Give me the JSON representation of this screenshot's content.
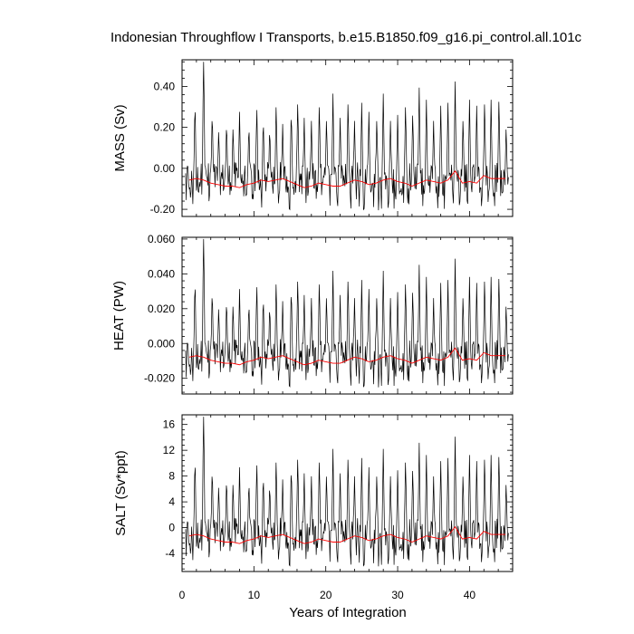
{
  "title": "Indonesian Throughflow I Transports, b.e15.B1850.f09_g16.pi_control.all.101c",
  "xlabel": "Years of Integration",
  "colors": {
    "monthly": "#000000",
    "annual": "#ff0000",
    "frame": "#000000"
  },
  "chart_data": [
    {
      "type": "line",
      "ylabel": "MASS (Sv)",
      "xlim": [
        0,
        46
      ],
      "ylim": [
        -0.235,
        0.53
      ],
      "xticks": [
        "0",
        "10",
        "20",
        "30",
        "40"
      ],
      "yticks": [
        "-0.20",
        "0.00",
        "0.20",
        "0.40"
      ],
      "ytick_values": [
        -0.2,
        0.0,
        0.2,
        0.4
      ],
      "series": [
        {
          "values_from": "monthly_norm",
          "scale": [
            -0.22,
            0.52
          ]
        },
        {
          "values_from": "annual_norm",
          "scale": [
            -0.22,
            0.52
          ]
        }
      ],
      "grid": false
    },
    {
      "type": "line",
      "ylabel": "HEAT (PW)",
      "xlim": [
        0,
        46
      ],
      "ylim": [
        -0.029,
        0.061
      ],
      "xticks": [
        "0",
        "10",
        "20",
        "30",
        "40"
      ],
      "yticks": [
        "-0.020",
        "0.000",
        "0.020",
        "0.040",
        "0.060"
      ],
      "ytick_values": [
        -0.02,
        0.0,
        0.02,
        0.04,
        0.06
      ],
      "series": [
        {
          "values_from": "monthly_norm",
          "scale": [
            -0.027,
            0.06
          ]
        },
        {
          "values_from": "annual_norm",
          "scale": [
            -0.027,
            0.06
          ]
        }
      ],
      "grid": false
    },
    {
      "type": "line",
      "ylabel": "SALT (Sv*ppt)",
      "xlim": [
        0,
        46
      ],
      "ylim": [
        -6.8,
        17.5
      ],
      "xticks": [
        "0",
        "10",
        "20",
        "30",
        "40"
      ],
      "yticks": [
        "-4",
        "0",
        "4",
        "8",
        "12",
        "16"
      ],
      "ytick_values": [
        -4,
        0,
        4,
        8,
        12,
        16
      ],
      "series": [
        {
          "values_from": "monthly_norm",
          "scale": [
            -6.5,
            17.2
          ]
        },
        {
          "values_from": "annual_norm",
          "scale": [
            -6.5,
            17.2
          ]
        }
      ],
      "grid": false
    }
  ],
  "shared_series": {
    "x_start": 0.5,
    "x_step_monthly": 0.0833333,
    "annual_x": [
      1,
      2,
      3,
      4,
      5,
      6,
      7,
      8,
      9,
      10,
      11,
      12,
      13,
      14,
      15,
      16,
      17,
      18,
      19,
      20,
      21,
      22,
      23,
      24,
      25,
      26,
      27,
      28,
      29,
      30,
      31,
      32,
      33,
      34,
      35,
      36,
      37,
      38,
      39,
      40,
      41,
      42,
      43,
      44,
      45
    ],
    "annual_norm": [
      0.22,
      0.23,
      0.22,
      0.2,
      0.19,
      0.18,
      0.18,
      0.17,
      0.19,
      0.2,
      0.22,
      0.21,
      0.22,
      0.23,
      0.21,
      0.19,
      0.17,
      0.18,
      0.2,
      0.19,
      0.18,
      0.18,
      0.2,
      0.22,
      0.21,
      0.19,
      0.2,
      0.22,
      0.23,
      0.21,
      0.2,
      0.18,
      0.2,
      0.22,
      0.21,
      0.2,
      0.22,
      0.28,
      0.2,
      0.21,
      0.2,
      0.25,
      0.23,
      0.23,
      0.23
    ],
    "spikes": [
      [
        1.8,
        0.62
      ],
      [
        3.0,
        1.0
      ],
      [
        4.2,
        0.55
      ],
      [
        5.1,
        0.42
      ],
      [
        6.2,
        0.48
      ],
      [
        7.1,
        0.44
      ],
      [
        8.0,
        0.52
      ],
      [
        9.3,
        0.46
      ],
      [
        10.4,
        0.58
      ],
      [
        11.3,
        0.5
      ],
      [
        12.2,
        0.44
      ],
      [
        13.1,
        0.6
      ],
      [
        14.0,
        0.44
      ],
      [
        15.2,
        0.56
      ],
      [
        16.1,
        0.62
      ],
      [
        17.0,
        0.48
      ],
      [
        18.0,
        0.46
      ],
      [
        19.1,
        0.6
      ],
      [
        20.1,
        0.5
      ],
      [
        21.0,
        0.64
      ],
      [
        22.0,
        0.48
      ],
      [
        23.1,
        0.62
      ],
      [
        24.0,
        0.46
      ],
      [
        25.0,
        0.58
      ],
      [
        26.0,
        0.52
      ],
      [
        27.1,
        0.5
      ],
      [
        28.0,
        0.64
      ],
      [
        29.0,
        0.46
      ],
      [
        30.0,
        0.5
      ],
      [
        31.1,
        0.6
      ],
      [
        32.1,
        0.54
      ],
      [
        33.0,
        0.68
      ],
      [
        34.0,
        0.6
      ],
      [
        35.0,
        0.46
      ],
      [
        36.0,
        0.56
      ],
      [
        37.0,
        0.58
      ],
      [
        38.0,
        0.72
      ],
      [
        39.1,
        0.5
      ],
      [
        40.0,
        0.6
      ],
      [
        41.0,
        0.56
      ],
      [
        42.1,
        0.62
      ],
      [
        43.0,
        0.6
      ],
      [
        44.1,
        0.64
      ],
      [
        45.1,
        0.44
      ]
    ]
  }
}
